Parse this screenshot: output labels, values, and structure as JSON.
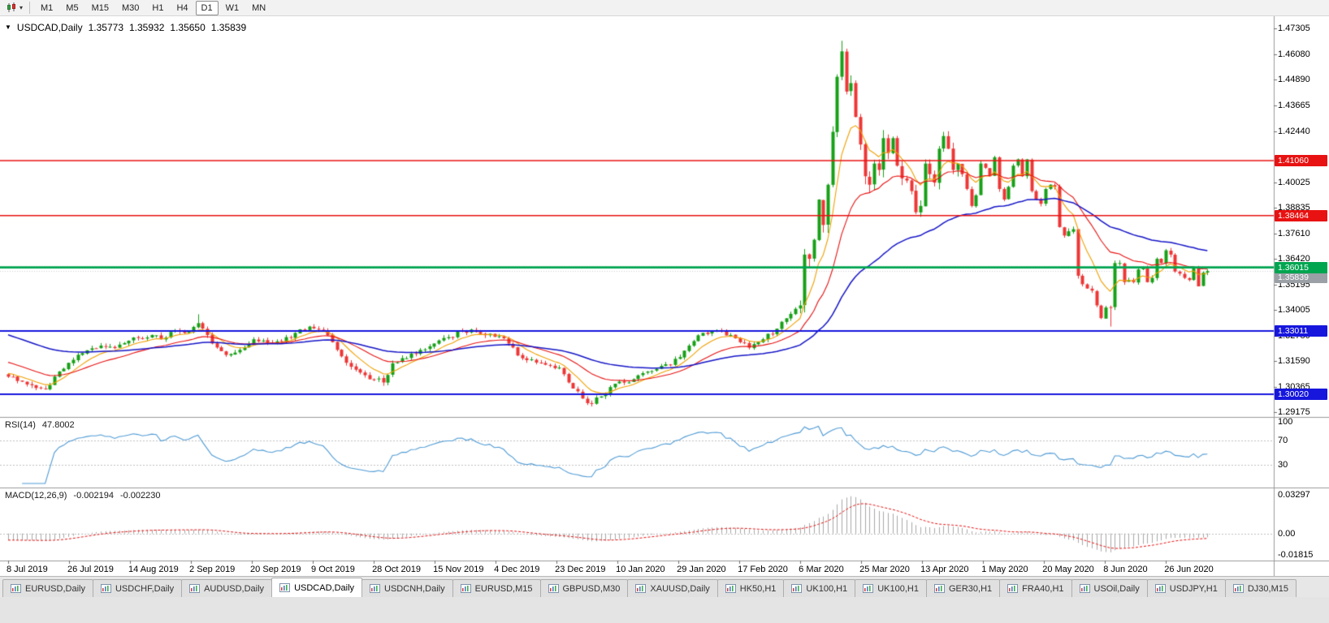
{
  "toolbar": {
    "timeframes": [
      "M1",
      "M5",
      "M15",
      "M30",
      "H1",
      "H4",
      "D1",
      "W1",
      "MN"
    ],
    "active_timeframe": "D1"
  },
  "chart": {
    "title_marker": "▼",
    "symbol_label": "USDCAD,Daily",
    "ohlc": {
      "open": "1.35773",
      "high": "1.35932",
      "low": "1.35650",
      "close": "1.35839"
    },
    "chart_data": {
      "type": "candlestick",
      "symbol": "USDCAD",
      "period": "Daily",
      "candle_count": 260,
      "x_first": 10,
      "x_step": 5.7,
      "y_range": [
        1.2895,
        1.4788
      ],
      "up_color": "#17a017",
      "down_color": "#ee3636",
      "y_ticks": [
        "1.47305",
        "1.46080",
        "1.44890",
        "1.43665",
        "1.42440",
        "1.40025",
        "1.38835",
        "1.37610",
        "1.36420",
        "1.35195",
        "1.34005",
        "1.32780",
        "1.31590",
        "1.30365",
        "1.29175"
      ],
      "x_labels": [
        "8 Jul 2019",
        "26 Jul 2019",
        "14 Aug 2019",
        "2 Sep 2019",
        "20 Sep 2019",
        "9 Oct 2019",
        "28 Oct 2019",
        "15 Nov 2019",
        "4 Dec 2019",
        "23 Dec 2019",
        "10 Jan 2020",
        "29 Jan 2020",
        "17 Feb 2020",
        "6 Mar 2020",
        "25 Mar 2020",
        "13 Apr 2020",
        "1 May 2020",
        "20 May 2020",
        "8 Jun 2020",
        "26 Jun 2020"
      ],
      "bars_per_label": 13.16,
      "hlines": [
        {
          "price": 1.4106,
          "label": "1.41060",
          "color": "#e81212",
          "width": 1.5
        },
        {
          "price": 1.38464,
          "label": "1.38464",
          "color": "#e81212",
          "width": 1.5
        },
        {
          "price": 1.36015,
          "label": "1.36015",
          "color": "#00a550",
          "width": 2.6
        },
        {
          "price": 1.33011,
          "label": "1.33011",
          "color": "#1616dd",
          "width": 2
        },
        {
          "price": 1.3002,
          "label": "1.30020",
          "color": "#1616dd",
          "width": 2
        }
      ],
      "bid": {
        "price": 1.35839,
        "label": "1.35839"
      },
      "moving_averages": [
        {
          "period": 8,
          "color": "#f0a000",
          "width": 1.1,
          "seed": 1.3105
        },
        {
          "period": 21,
          "color": "#e81212",
          "width": 1.1,
          "seed": 1.316
        },
        {
          "period": 55,
          "color": "#1515c8",
          "width": 1.5,
          "seed": 1.329
        }
      ],
      "close_anchors": [
        [
          0,
          1.3085
        ],
        [
          2,
          1.3065
        ],
        [
          5,
          1.3045
        ],
        [
          8,
          1.3025
        ],
        [
          11,
          1.311
        ],
        [
          14,
          1.3165
        ],
        [
          17,
          1.321
        ],
        [
          20,
          1.3232
        ],
        [
          23,
          1.322
        ],
        [
          26,
          1.3255
        ],
        [
          28,
          1.3268
        ],
        [
          31,
          1.3282
        ],
        [
          33,
          1.3262
        ],
        [
          36,
          1.3305
        ],
        [
          38,
          1.3292
        ],
        [
          41,
          1.3338
        ],
        [
          44,
          1.3242
        ],
        [
          47,
          1.3188
        ],
        [
          50,
          1.3212
        ],
        [
          53,
          1.3262
        ],
        [
          56,
          1.3246
        ],
        [
          59,
          1.3252
        ],
        [
          62,
          1.3292
        ],
        [
          65,
          1.3322
        ],
        [
          67,
          1.3308
        ],
        [
          69,
          1.3282
        ],
        [
          71,
          1.3212
        ],
        [
          74,
          1.3132
        ],
        [
          77,
          1.3092
        ],
        [
          79,
          1.3072
        ],
        [
          81,
          1.3058
        ],
        [
          83,
          1.3148
        ],
        [
          86,
          1.3172
        ],
        [
          89,
          1.3212
        ],
        [
          92,
          1.3242
        ],
        [
          95,
          1.3272
        ],
        [
          98,
          1.3302
        ],
        [
          101,
          1.3296
        ],
        [
          104,
          1.3288
        ],
        [
          106,
          1.3276
        ],
        [
          108,
          1.3242
        ],
        [
          111,
          1.3172
        ],
        [
          114,
          1.3152
        ],
        [
          117,
          1.3138
        ],
        [
          119,
          1.3128
        ],
        [
          121,
          1.3058
        ],
        [
          124,
          1.2982
        ],
        [
          126,
          1.2958
        ],
        [
          128,
          1.2992
        ],
        [
          131,
          1.3052
        ],
        [
          134,
          1.3058
        ],
        [
          137,
          1.3102
        ],
        [
          140,
          1.3122
        ],
        [
          143,
          1.3142
        ],
        [
          145,
          1.3178
        ],
        [
          147,
          1.3232
        ],
        [
          150,
          1.3292
        ],
        [
          153,
          1.3302
        ],
        [
          156,
          1.3282
        ],
        [
          158,
          1.3248
        ],
        [
          160,
          1.3222
        ],
        [
          163,
          1.3262
        ],
        [
          166,
          1.3312
        ],
        [
          169,
          1.3382
        ],
        [
          171,
          1.3422
        ],
        [
          172,
          1.3662
        ],
        [
          173,
          1.3642
        ],
        [
          174,
          1.3732
        ],
        [
          175,
          1.3922
        ],
        [
          176,
          1.3802
        ],
        [
          177,
          1.3992
        ],
        [
          178,
          1.4242
        ],
        [
          179,
          1.4502
        ],
        [
          180,
          1.4622
        ],
        [
          181,
          1.4432
        ],
        [
          182,
          1.4472
        ],
        [
          183,
          1.4312
        ],
        [
          184,
          1.4182
        ],
        [
          185,
          1.4032
        ],
        [
          186,
          1.3992
        ],
        [
          187,
          1.4092
        ],
        [
          188,
          1.4062
        ],
        [
          189,
          1.4212
        ],
        [
          190,
          1.4142
        ],
        [
          191,
          1.4212
        ],
        [
          192,
          1.4082
        ],
        [
          193,
          1.4022
        ],
        [
          194,
          1.4012
        ],
        [
          195,
          1.3962
        ],
        [
          196,
          1.3862
        ],
        [
          197,
          1.3892
        ],
        [
          198,
          1.4092
        ],
        [
          199,
          1.4042
        ],
        [
          200,
          1.4002
        ],
        [
          201,
          1.4162
        ],
        [
          202,
          1.4222
        ],
        [
          203,
          1.4162
        ],
        [
          204,
          1.4062
        ],
        [
          205,
          1.4092
        ],
        [
          206,
          1.4042
        ],
        [
          207,
          1.3972
        ],
        [
          208,
          1.3892
        ],
        [
          209,
          1.3942
        ],
        [
          210,
          1.4092
        ],
        [
          211,
          1.4072
        ],
        [
          212,
          1.4032
        ],
        [
          213,
          1.4122
        ],
        [
          214,
          1.3972
        ],
        [
          215,
          1.3922
        ],
        [
          216,
          1.3982
        ],
        [
          217,
          1.4082
        ],
        [
          218,
          1.4112
        ],
        [
          219,
          1.4032
        ],
        [
          220,
          1.4112
        ],
        [
          221,
          1.3962
        ],
        [
          222,
          1.3922
        ],
        [
          223,
          1.3902
        ],
        [
          224,
          1.3972
        ],
        [
          225,
          1.3992
        ],
        [
          226,
          1.3982
        ],
        [
          227,
          1.3792
        ],
        [
          228,
          1.3752
        ],
        [
          229,
          1.3772
        ],
        [
          230,
          1.3782
        ],
        [
          231,
          1.3562
        ],
        [
          232,
          1.3522
        ],
        [
          233,
          1.3502
        ],
        [
          234,
          1.3492
        ],
        [
          235,
          1.3422
        ],
        [
          236,
          1.3362
        ],
        [
          237,
          1.3412
        ],
        [
          238,
          1.3412
        ],
        [
          239,
          1.3622
        ],
        [
          240,
          1.3622
        ],
        [
          241,
          1.3532
        ],
        [
          242,
          1.3542
        ],
        [
          243,
          1.3532
        ],
        [
          244,
          1.3592
        ],
        [
          245,
          1.3602
        ],
        [
          246,
          1.3532
        ],
        [
          247,
          1.3552
        ],
        [
          248,
          1.3642
        ],
        [
          249,
          1.3622
        ],
        [
          250,
          1.3682
        ],
        [
          251,
          1.3662
        ],
        [
          252,
          1.3582
        ],
        [
          253,
          1.3572
        ],
        [
          254,
          1.3552
        ],
        [
          255,
          1.3542
        ],
        [
          256,
          1.3602
        ],
        [
          257,
          1.3512
        ],
        [
          258,
          1.3577
        ],
        [
          259,
          1.35839
        ]
      ],
      "wick_overrides": [
        [
          41,
          "h",
          1.338
        ],
        [
          81,
          "l",
          1.3042
        ],
        [
          126,
          "l",
          1.2948
        ],
        [
          180,
          "h",
          1.4672
        ],
        [
          238,
          "l",
          1.3322
        ]
      ],
      "last_quote": {
        "open": 1.35773,
        "high": 1.35932,
        "low": 1.3565,
        "close": 1.35839
      }
    }
  },
  "indicators": {
    "rsi": {
      "label": "RSI(14)",
      "value": "47.8002",
      "period": 14,
      "color": "#4f9bd5",
      "levels": [
        70,
        30
      ],
      "axis_labels": [
        {
          "v": 100,
          "text": "100"
        },
        {
          "v": 70,
          "text": "70"
        },
        {
          "v": 30,
          "text": "30"
        }
      ]
    },
    "macd": {
      "label": "MACD(12,26,9)",
      "value_main": "-0.002194",
      "value_signal": "-0.002230",
      "fast": 12,
      "slow": 26,
      "signal": 9,
      "seed_fast": 1.315,
      "seed_slow": 1.3205,
      "histogram_color": "#a8a8a8",
      "signal_color": "#e81212",
      "range": [
        -0.01815,
        0.03297
      ],
      "axis_labels": [
        {
          "v": 0.03297,
          "text": "0.03297"
        },
        {
          "v": 0,
          "text": "0.00"
        },
        {
          "v": -0.01815,
          "text": "-0.01815"
        }
      ]
    }
  },
  "tabs": {
    "items": [
      "EURUSD,Daily",
      "USDCHF,Daily",
      "AUDUSD,Daily",
      "USDCAD,Daily",
      "USDCNH,Daily",
      "EURUSD,M15",
      "GBPUSD,M30",
      "XAUUSD,Daily",
      "HK50,H1",
      "UK100,H1",
      "UK100,H1",
      "GER30,H1",
      "FRA40,H1",
      "USOil,Daily",
      "USDJPY,H1",
      "DJ30,M15"
    ],
    "active_index": 3
  }
}
